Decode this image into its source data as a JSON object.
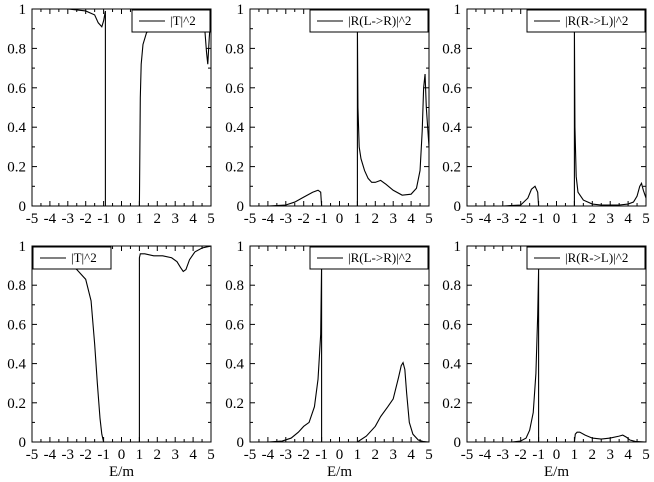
{
  "chart_data": [
    {
      "type": "line",
      "xlim": [
        -5,
        5
      ],
      "ylim": [
        0,
        1
      ],
      "xticks": [
        "-5",
        "-4",
        "-3",
        "-2",
        "-1",
        "0",
        "1",
        "2",
        "3",
        "4",
        "5"
      ],
      "yticks": [
        "0",
        "0.2",
        "0.4",
        "0.6",
        "0.8",
        "1"
      ],
      "xlabel": "",
      "legend": "|T|^2",
      "legend_position": "top-right",
      "series": [
        {
          "name": "|T|^2",
          "segments": [
            {
              "x": [
                -5,
                -3,
                -2,
                -1.5,
                -1.3,
                -1.1,
                -1.0,
                -0.9,
                -0.9
              ],
              "y": [
                1.0,
                1.0,
                0.99,
                0.97,
                0.93,
                0.91,
                0.94,
                0.99,
                0.0
              ]
            },
            {
              "x": [
                1.0,
                1.05,
                1.1,
                1.2,
                1.4,
                1.7,
                2.0,
                3.0,
                4.0,
                4.5,
                4.65,
                4.75,
                4.82,
                4.9,
                5.0
              ],
              "y": [
                0.0,
                0.55,
                0.72,
                0.82,
                0.88,
                0.9,
                0.9,
                0.91,
                0.93,
                0.95,
                0.9,
                0.78,
                0.72,
                0.85,
                0.98
              ]
            }
          ]
        }
      ]
    },
    {
      "type": "line",
      "xlim": [
        -5,
        5
      ],
      "ylim": [
        0,
        1
      ],
      "xticks": [
        "-5",
        "-4",
        "-3",
        "-2",
        "-1",
        "0",
        "1",
        "2",
        "3",
        "4",
        "5"
      ],
      "yticks": [
        "0",
        "0.2",
        "0.4",
        "0.6",
        "0.8",
        "1"
      ],
      "xlabel": "",
      "legend": "|R(L->R)|^2",
      "legend_position": "top-right",
      "series": [
        {
          "name": "|R(L->R)|^2",
          "segments": [
            {
              "x": [
                -5,
                -4,
                -3,
                -2.5,
                -2,
                -1.5,
                -1.2,
                -1.05,
                -1.0
              ],
              "y": [
                0.0,
                0.0,
                0.005,
                0.02,
                0.045,
                0.07,
                0.08,
                0.07,
                0.0
              ]
            },
            {
              "x": [
                1.0,
                1.0,
                1.03,
                1.1,
                1.2,
                1.4,
                1.6,
                1.8,
                2.0,
                2.3,
                2.6,
                3.0,
                3.5,
                4.0,
                4.3,
                4.5,
                4.62,
                4.7,
                4.78,
                4.85,
                5.0
              ],
              "y": [
                0.0,
                0.91,
                0.5,
                0.3,
                0.24,
                0.18,
                0.14,
                0.12,
                0.12,
                0.13,
                0.11,
                0.08,
                0.055,
                0.06,
                0.09,
                0.18,
                0.38,
                0.6,
                0.67,
                0.5,
                0.3
              ]
            }
          ]
        }
      ]
    },
    {
      "type": "line",
      "xlim": [
        -5,
        5
      ],
      "ylim": [
        0,
        1
      ],
      "xticks": [
        "-5",
        "-4",
        "-3",
        "-2",
        "-1",
        "0",
        "1",
        "2",
        "3",
        "4",
        "5"
      ],
      "yticks": [
        "0",
        "0.2",
        "0.4",
        "0.6",
        "0.8",
        "1"
      ],
      "xlabel": "",
      "legend": "|R(R->L)|^2",
      "legend_position": "top-right",
      "series": [
        {
          "name": "|R(R->L)|^2",
          "segments": [
            {
              "x": [
                -5,
                -3,
                -2,
                -1.6,
                -1.4,
                -1.2,
                -1.05,
                -1.0
              ],
              "y": [
                0.0,
                0.0,
                0.005,
                0.04,
                0.085,
                0.1,
                0.07,
                0.0
              ]
            },
            {
              "x": [
                1.0,
                1.0,
                1.03,
                1.1,
                1.2,
                1.5,
                2.0,
                2.5,
                3.0,
                3.5,
                4.0,
                4.3,
                4.5,
                4.65,
                4.75,
                4.85,
                5.0
              ],
              "y": [
                0.0,
                0.91,
                0.4,
                0.15,
                0.07,
                0.03,
                0.01,
                0.005,
                0.005,
                0.005,
                0.01,
                0.02,
                0.05,
                0.1,
                0.115,
                0.08,
                0.04
              ]
            }
          ]
        }
      ]
    },
    {
      "type": "line",
      "xlim": [
        -5,
        5
      ],
      "ylim": [
        0,
        1
      ],
      "xticks": [
        "-5",
        "-4",
        "-3",
        "-2",
        "-1",
        "0",
        "1",
        "2",
        "3",
        "4",
        "5"
      ],
      "yticks": [
        "0",
        "0.2",
        "0.4",
        "0.6",
        "0.8",
        "1"
      ],
      "xlabel": "E/m",
      "legend": "|T|^2",
      "legend_position": "top-left",
      "series": [
        {
          "name": "|T|^2",
          "segments": [
            {
              "x": [
                -3.0,
                -2.5,
                -2.0,
                -1.7,
                -1.5,
                -1.35,
                -1.2,
                -1.1,
                -1.0
              ],
              "y": [
                0.91,
                0.88,
                0.83,
                0.72,
                0.5,
                0.3,
                0.12,
                0.04,
                0.0
              ]
            },
            {
              "x": [
                1.0,
                1.0,
                1.05,
                1.3,
                1.8,
                2.3,
                2.8,
                3.1,
                3.3,
                3.45,
                3.6,
                3.8,
                4.1,
                4.5,
                5.0
              ],
              "y": [
                0.0,
                0.94,
                0.96,
                0.96,
                0.95,
                0.95,
                0.94,
                0.92,
                0.89,
                0.87,
                0.88,
                0.93,
                0.97,
                0.99,
                1.0
              ]
            }
          ]
        }
      ]
    },
    {
      "type": "line",
      "xlim": [
        -5,
        5
      ],
      "ylim": [
        0,
        1
      ],
      "xticks": [
        "-5",
        "-4",
        "-3",
        "-2",
        "-1",
        "0",
        "1",
        "2",
        "3",
        "4",
        "5"
      ],
      "yticks": [
        "0",
        "0.2",
        "0.4",
        "0.6",
        "0.8",
        "1"
      ],
      "xlabel": "E/m",
      "legend": "|R(L->R)|^2",
      "legend_position": "top-right",
      "series": [
        {
          "name": "|R(L->R)|^2",
          "segments": [
            {
              "x": [
                -5,
                -4,
                -3.2,
                -2.7,
                -2.3,
                -2.0,
                -1.7,
                -1.4,
                -1.2,
                -1.05,
                -1.0,
                -1.0
              ],
              "y": [
                0.0,
                0.0,
                0.005,
                0.02,
                0.05,
                0.08,
                0.1,
                0.18,
                0.32,
                0.55,
                0.91,
                0.0
              ]
            },
            {
              "x": [
                1.0,
                1.5,
                2.0,
                2.3,
                2.7,
                3.0,
                3.3,
                3.45,
                3.55,
                3.65,
                3.75,
                3.9,
                4.1,
                4.4,
                4.7,
                5.0
              ],
              "y": [
                0.0,
                0.03,
                0.08,
                0.13,
                0.18,
                0.22,
                0.33,
                0.39,
                0.405,
                0.37,
                0.25,
                0.1,
                0.04,
                0.01,
                0.002,
                0.0
              ]
            }
          ]
        }
      ]
    },
    {
      "type": "line",
      "xlim": [
        -5,
        5
      ],
      "ylim": [
        0,
        1
      ],
      "xticks": [
        "-5",
        "-4",
        "-3",
        "-2",
        "-1",
        "0",
        "1",
        "2",
        "3",
        "4",
        "5"
      ],
      "yticks": [
        "0",
        "0.2",
        "0.4",
        "0.6",
        "0.8",
        "1"
      ],
      "xlabel": "E/m",
      "legend": "|R(R->L)|^2",
      "legend_position": "top-right",
      "series": [
        {
          "name": "|R(R->L)|^2",
          "segments": [
            {
              "x": [
                -5,
                -2.5,
                -2.0,
                -1.7,
                -1.5,
                -1.3,
                -1.15,
                -1.05,
                -1.0,
                -1.0
              ],
              "y": [
                0.0,
                0.0,
                0.005,
                0.02,
                0.06,
                0.15,
                0.35,
                0.65,
                0.88,
                0.0
              ]
            },
            {
              "x": [
                1.0,
                1.05,
                1.15,
                1.3,
                1.6,
                2.0,
                2.5,
                3.0,
                3.5,
                3.7,
                3.9,
                4.1,
                4.4,
                5.0
              ],
              "y": [
                0.0,
                0.04,
                0.05,
                0.05,
                0.035,
                0.02,
                0.015,
                0.02,
                0.03,
                0.035,
                0.025,
                0.01,
                0.003,
                0.0
              ]
            }
          ]
        }
      ]
    }
  ]
}
